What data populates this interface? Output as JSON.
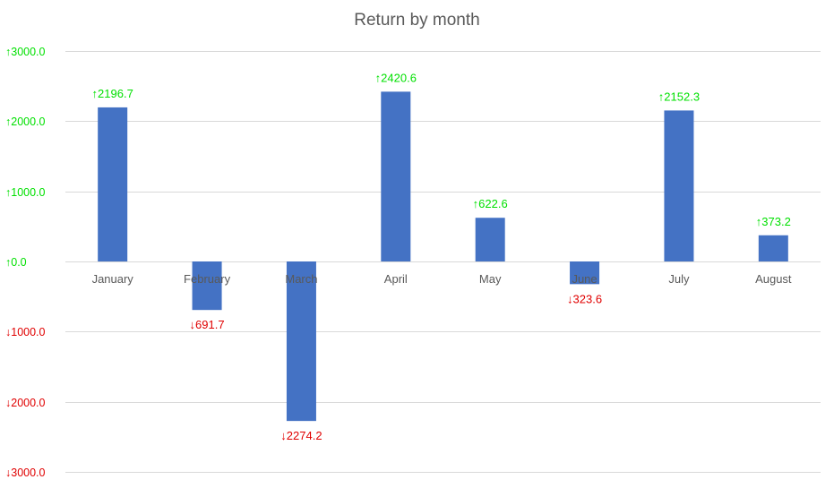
{
  "chart_data": {
    "type": "bar",
    "title": "Return by month",
    "xlabel": "",
    "ylabel": "",
    "categories": [
      "January",
      "February",
      "March",
      "April",
      "May",
      "June",
      "July",
      "August"
    ],
    "values": [
      2196.7,
      -691.7,
      -2274.2,
      2420.6,
      622.6,
      -323.6,
      2152.3,
      373.2
    ],
    "data_labels": [
      "↑2196.7",
      "↓691.7",
      "↓2274.2",
      "↑2420.6",
      "↑622.6",
      "↓323.6",
      "↑2152.3",
      "↑373.2"
    ],
    "ylim": [
      -3000,
      3000
    ],
    "y_ticks": [
      3000,
      2000,
      1000,
      0,
      -1000,
      -2000,
      -3000
    ],
    "y_tick_labels": [
      "↑3000.0",
      "↑2000.0",
      "↑1000.0",
      "↑0.0",
      "↓1000.0",
      "↓2000.0",
      "↓3000.0"
    ],
    "grid": true,
    "legend": "none",
    "colors": {
      "bar": "#4472C4",
      "positive_label": "#00E000",
      "negative_label": "#E00000",
      "grid": "#D9D9D9",
      "category_text": "#595959"
    }
  }
}
